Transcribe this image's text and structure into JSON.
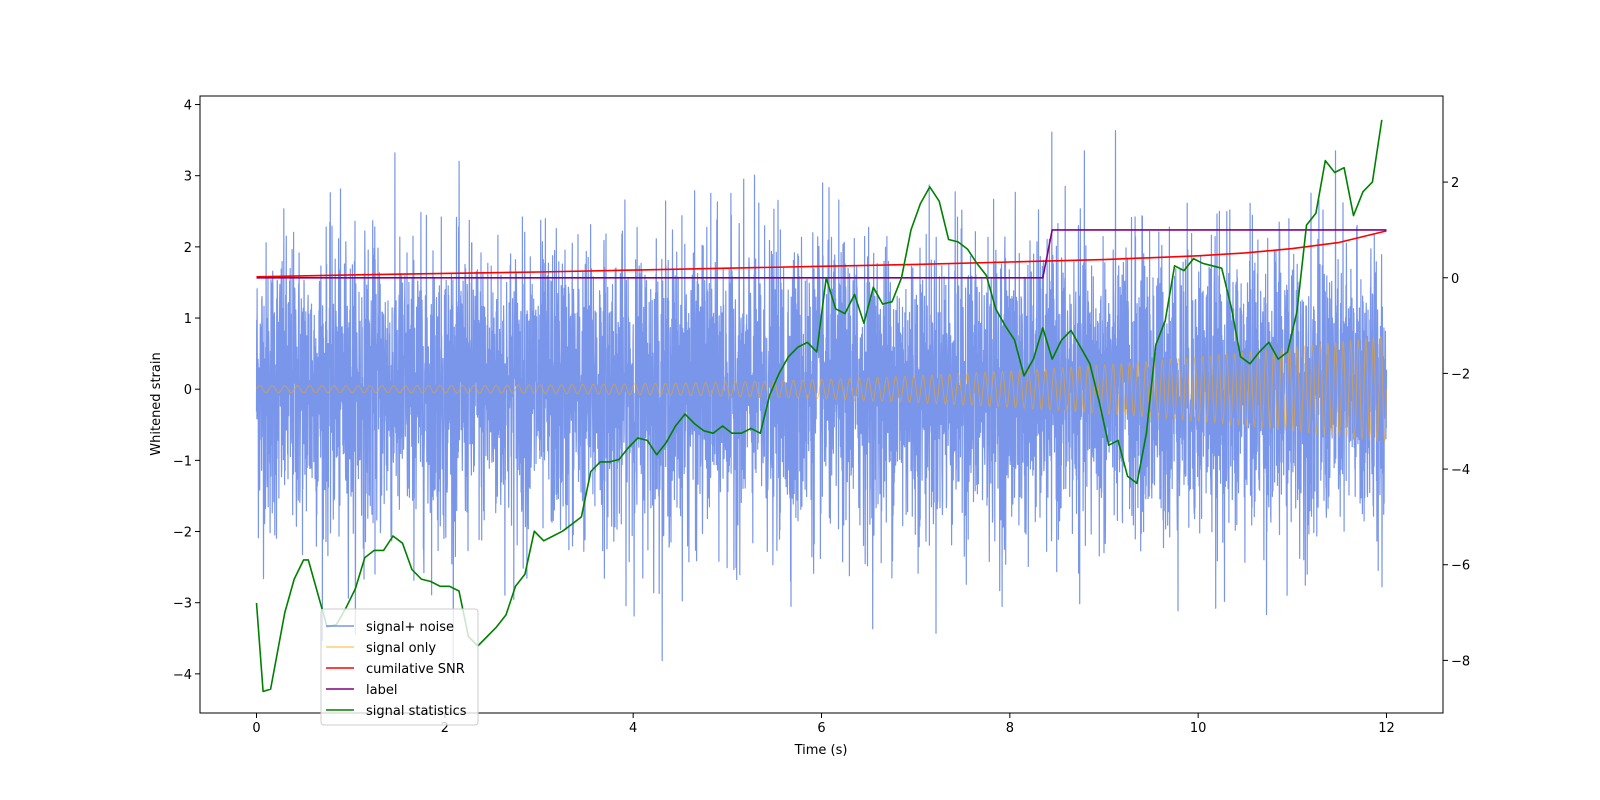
{
  "chart_data": {
    "type": "line",
    "xlabel": "Time (s)",
    "ylabel": "Whitened strain",
    "xlim": [
      -0.6,
      12.6
    ],
    "ylim": [
      -4.55,
      4.12
    ],
    "y2lim": [
      -9.1,
      3.8
    ],
    "xticks": [
      0,
      2,
      4,
      6,
      8,
      10,
      12
    ],
    "yticks": [
      -4,
      -3,
      -2,
      -1,
      0,
      1,
      2,
      3,
      4
    ],
    "y2ticks": [
      -8,
      -6,
      -4,
      -2,
      0,
      2
    ],
    "grid": false,
    "legend_position": "lower-left",
    "series": [
      {
        "name": "signal+ noise",
        "axis": "left",
        "color": "#4169e1",
        "kind": "noise",
        "x_range": [
          0,
          12
        ],
        "typical_amplitude": 1.3,
        "max_peak": 3.73,
        "min_peak": -4.15
      },
      {
        "name": "signal only",
        "axis": "left",
        "color": "#ffa500",
        "kind": "chirp",
        "x_range": [
          0,
          12
        ],
        "amplitude_start": 0.05,
        "amplitude_end": 0.75,
        "cycles": 120
      },
      {
        "name": "cumilative SNR",
        "axis": "right",
        "color": "#ff0000",
        "x": [
          0,
          1,
          2,
          3,
          4,
          5,
          6,
          7,
          8,
          9,
          10,
          10.5,
          11,
          11.5,
          12
        ],
        "y": [
          0.02,
          0.06,
          0.09,
          0.12,
          0.16,
          0.2,
          0.24,
          0.28,
          0.33,
          0.38,
          0.46,
          0.52,
          0.61,
          0.74,
          0.98
        ]
      },
      {
        "name": "label",
        "axis": "right",
        "color": "#800080",
        "x": [
          0,
          8.35,
          8.45,
          12
        ],
        "y": [
          0.0,
          0.0,
          1.0,
          1.0
        ]
      },
      {
        "name": "signal statistics",
        "axis": "right",
        "color": "#008000",
        "x": [
          0,
          0.07,
          0.15,
          0.3,
          0.4,
          0.5,
          0.55,
          0.75,
          0.85,
          0.95,
          1.05,
          1.15,
          1.25,
          1.35,
          1.45,
          1.55,
          1.65,
          1.75,
          1.85,
          1.95,
          2.05,
          2.15,
          2.25,
          2.35,
          2.45,
          2.55,
          2.65,
          2.75,
          2.85,
          2.95,
          3.05,
          3.15,
          3.25,
          3.35,
          3.45,
          3.55,
          3.65,
          3.75,
          3.85,
          3.95,
          4.05,
          4.15,
          4.25,
          4.35,
          4.45,
          4.55,
          4.65,
          4.75,
          4.85,
          4.95,
          5.05,
          5.15,
          5.25,
          5.35,
          5.45,
          5.55,
          5.65,
          5.75,
          5.85,
          5.95,
          6.05,
          6.15,
          6.25,
          6.35,
          6.45,
          6.55,
          6.65,
          6.75,
          6.85,
          6.95,
          7.05,
          7.15,
          7.25,
          7.35,
          7.45,
          7.55,
          7.65,
          7.75,
          7.85,
          7.95,
          8.05,
          8.15,
          8.25,
          8.35,
          8.45,
          8.55,
          8.65,
          8.75,
          8.85,
          8.95,
          9.05,
          9.15,
          9.25,
          9.35,
          9.45,
          9.55,
          9.65,
          9.75,
          9.85,
          9.95,
          10.05,
          10.15,
          10.25,
          10.35,
          10.45,
          10.55,
          10.65,
          10.75,
          10.85,
          10.95,
          11.05,
          11.15,
          11.25,
          11.35,
          11.45,
          11.55,
          11.65,
          11.75,
          11.85,
          11.95
        ],
        "y": [
          -6.8,
          -8.65,
          -8.6,
          -7.0,
          -6.3,
          -5.9,
          -5.9,
          -7.3,
          -7.25,
          -6.9,
          -6.5,
          -5.85,
          -5.7,
          -5.7,
          -5.4,
          -5.55,
          -6.1,
          -6.3,
          -6.35,
          -6.45,
          -6.45,
          -6.55,
          -7.5,
          -7.7,
          -7.5,
          -7.3,
          -7.05,
          -6.45,
          -6.2,
          -5.3,
          -5.5,
          -5.4,
          -5.3,
          -5.15,
          -5.0,
          -4.05,
          -3.85,
          -3.85,
          -3.8,
          -3.55,
          -3.35,
          -3.4,
          -3.7,
          -3.45,
          -3.1,
          -2.85,
          -3.05,
          -3.2,
          -3.25,
          -3.1,
          -3.25,
          -3.25,
          -3.15,
          -3.25,
          -2.45,
          -2.0,
          -1.65,
          -1.45,
          -1.35,
          -1.55,
          0.0,
          -0.65,
          -0.75,
          -0.35,
          -0.95,
          -0.2,
          -0.55,
          -0.5,
          0.0,
          1.0,
          1.55,
          1.9,
          1.6,
          0.8,
          0.75,
          0.6,
          0.3,
          0.05,
          -0.65,
          -1.0,
          -1.3,
          -2.05,
          -1.7,
          -1.05,
          -1.7,
          -1.3,
          -1.1,
          -1.45,
          -1.8,
          -2.6,
          -3.5,
          -3.4,
          -4.15,
          -4.3,
          -3.25,
          -1.4,
          -0.9,
          0.25,
          0.15,
          0.4,
          0.3,
          0.25,
          0.2,
          -0.6,
          -1.65,
          -1.8,
          -1.55,
          -1.35,
          -1.7,
          -1.55,
          -0.7,
          1.1,
          1.35,
          2.45,
          2.2,
          2.3,
          1.3,
          1.8,
          2.0,
          3.3
        ]
      }
    ]
  }
}
